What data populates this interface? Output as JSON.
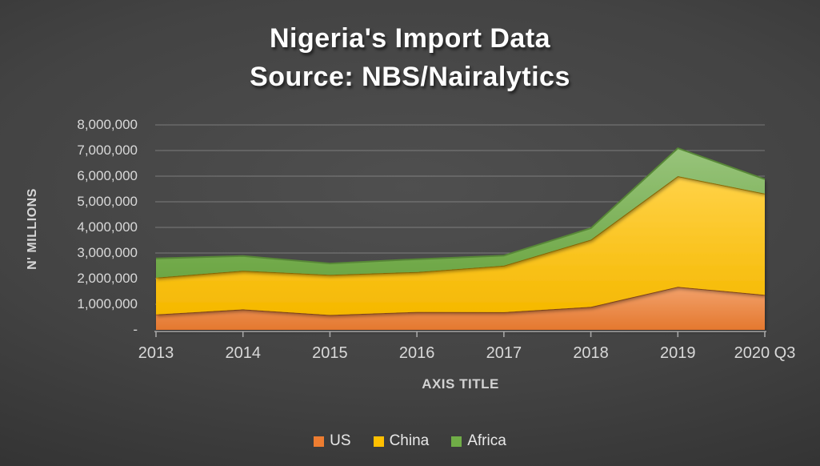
{
  "header": {
    "title": "Nigeria's Import Data",
    "subtitle": "Source: NBS/Nairalytics"
  },
  "y_axis": {
    "title": "N' MILLIONS",
    "tick_labels": [
      "8,000,000",
      "7,000,000",
      "6,000,000",
      "5,000,000",
      "4,000,000",
      "3,000,000",
      "2,000,000",
      "1,000,000",
      "-"
    ],
    "tick_values": [
      8000000,
      7000000,
      6000000,
      5000000,
      4000000,
      3000000,
      2000000,
      1000000,
      0
    ]
  },
  "x_axis": {
    "title": "AXIS TITLE"
  },
  "colors": {
    "background_center": "#4f4f4f",
    "background_edge": "#262626",
    "gridline": "rgba(255,255,255,0.28)",
    "axis_line": "#a6a6a6",
    "tick_label": "#d9d9d9",
    "title_text": "#ffffff",
    "us": "#ED7D31",
    "china": "#FFC000",
    "africa": "#70AD47"
  },
  "chart_data": {
    "type": "area",
    "stacked": true,
    "title": "Nigeria's Import Data",
    "subtitle": "Source: NBS/Nairalytics",
    "xlabel": "AXIS TITLE",
    "ylabel": "N' MILLIONS",
    "ylim": [
      0,
      8000000
    ],
    "grid": true,
    "legend_position": "bottom",
    "categories": [
      "2013",
      "2014",
      "2015",
      "2016",
      "2017",
      "2018",
      "2019",
      "2020 Q3"
    ],
    "series": [
      {
        "name": "US",
        "color": "#ED7D31",
        "values": [
          600000,
          800000,
          580000,
          700000,
          690000,
          900000,
          1680000,
          1370000
        ]
      },
      {
        "name": "China",
        "color": "#FFC000",
        "values": [
          1440000,
          1510000,
          1570000,
          1560000,
          1820000,
          2620000,
          4320000,
          3950000
        ]
      },
      {
        "name": "Africa",
        "color": "#70AD47",
        "values": [
          750000,
          570000,
          440000,
          500000,
          390000,
          450000,
          1090000,
          560000
        ]
      }
    ]
  }
}
